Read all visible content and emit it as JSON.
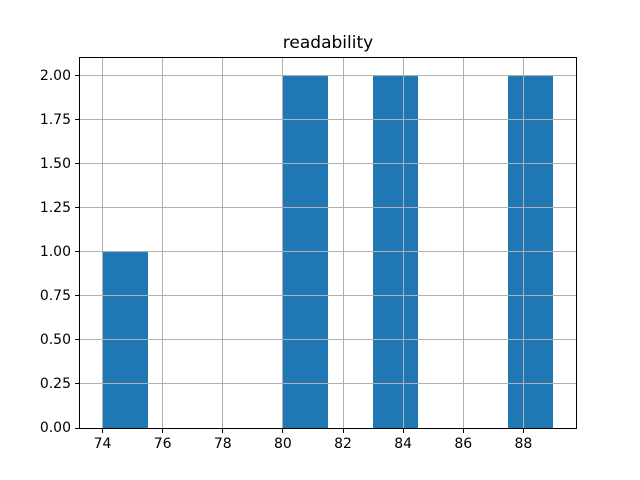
{
  "chart_data": {
    "type": "bar",
    "subtype": "histogram",
    "title": "readability",
    "xlabel": "",
    "ylabel": "",
    "bin_edges": [
      74,
      75.5,
      77,
      78.5,
      80,
      81.5,
      83,
      84.5,
      86,
      87.5,
      89
    ],
    "counts": [
      1,
      0,
      0,
      0,
      2,
      0,
      2,
      0,
      0,
      2
    ],
    "xlim": [
      73.25,
      89.75
    ],
    "ylim": [
      0,
      2.1
    ],
    "x_ticks": [
      74,
      76,
      78,
      80,
      82,
      84,
      86,
      88
    ],
    "x_tick_labels": [
      "74",
      "76",
      "78",
      "80",
      "82",
      "84",
      "86",
      "88"
    ],
    "y_ticks": [
      0,
      0.25,
      0.5,
      0.75,
      1,
      1.25,
      1.5,
      1.75,
      2
    ],
    "y_tick_labels": [
      "0.00",
      "0.25",
      "0.50",
      "0.75",
      "1.00",
      "1.25",
      "1.50",
      "1.75",
      "2.00"
    ],
    "grid": true,
    "grid_above_bars": true,
    "legend": false,
    "colors": {
      "bar": "#1f77b4",
      "grid": "#b0b0b0",
      "spine": "#000000",
      "text": "#000000",
      "background": "#ffffff"
    }
  }
}
